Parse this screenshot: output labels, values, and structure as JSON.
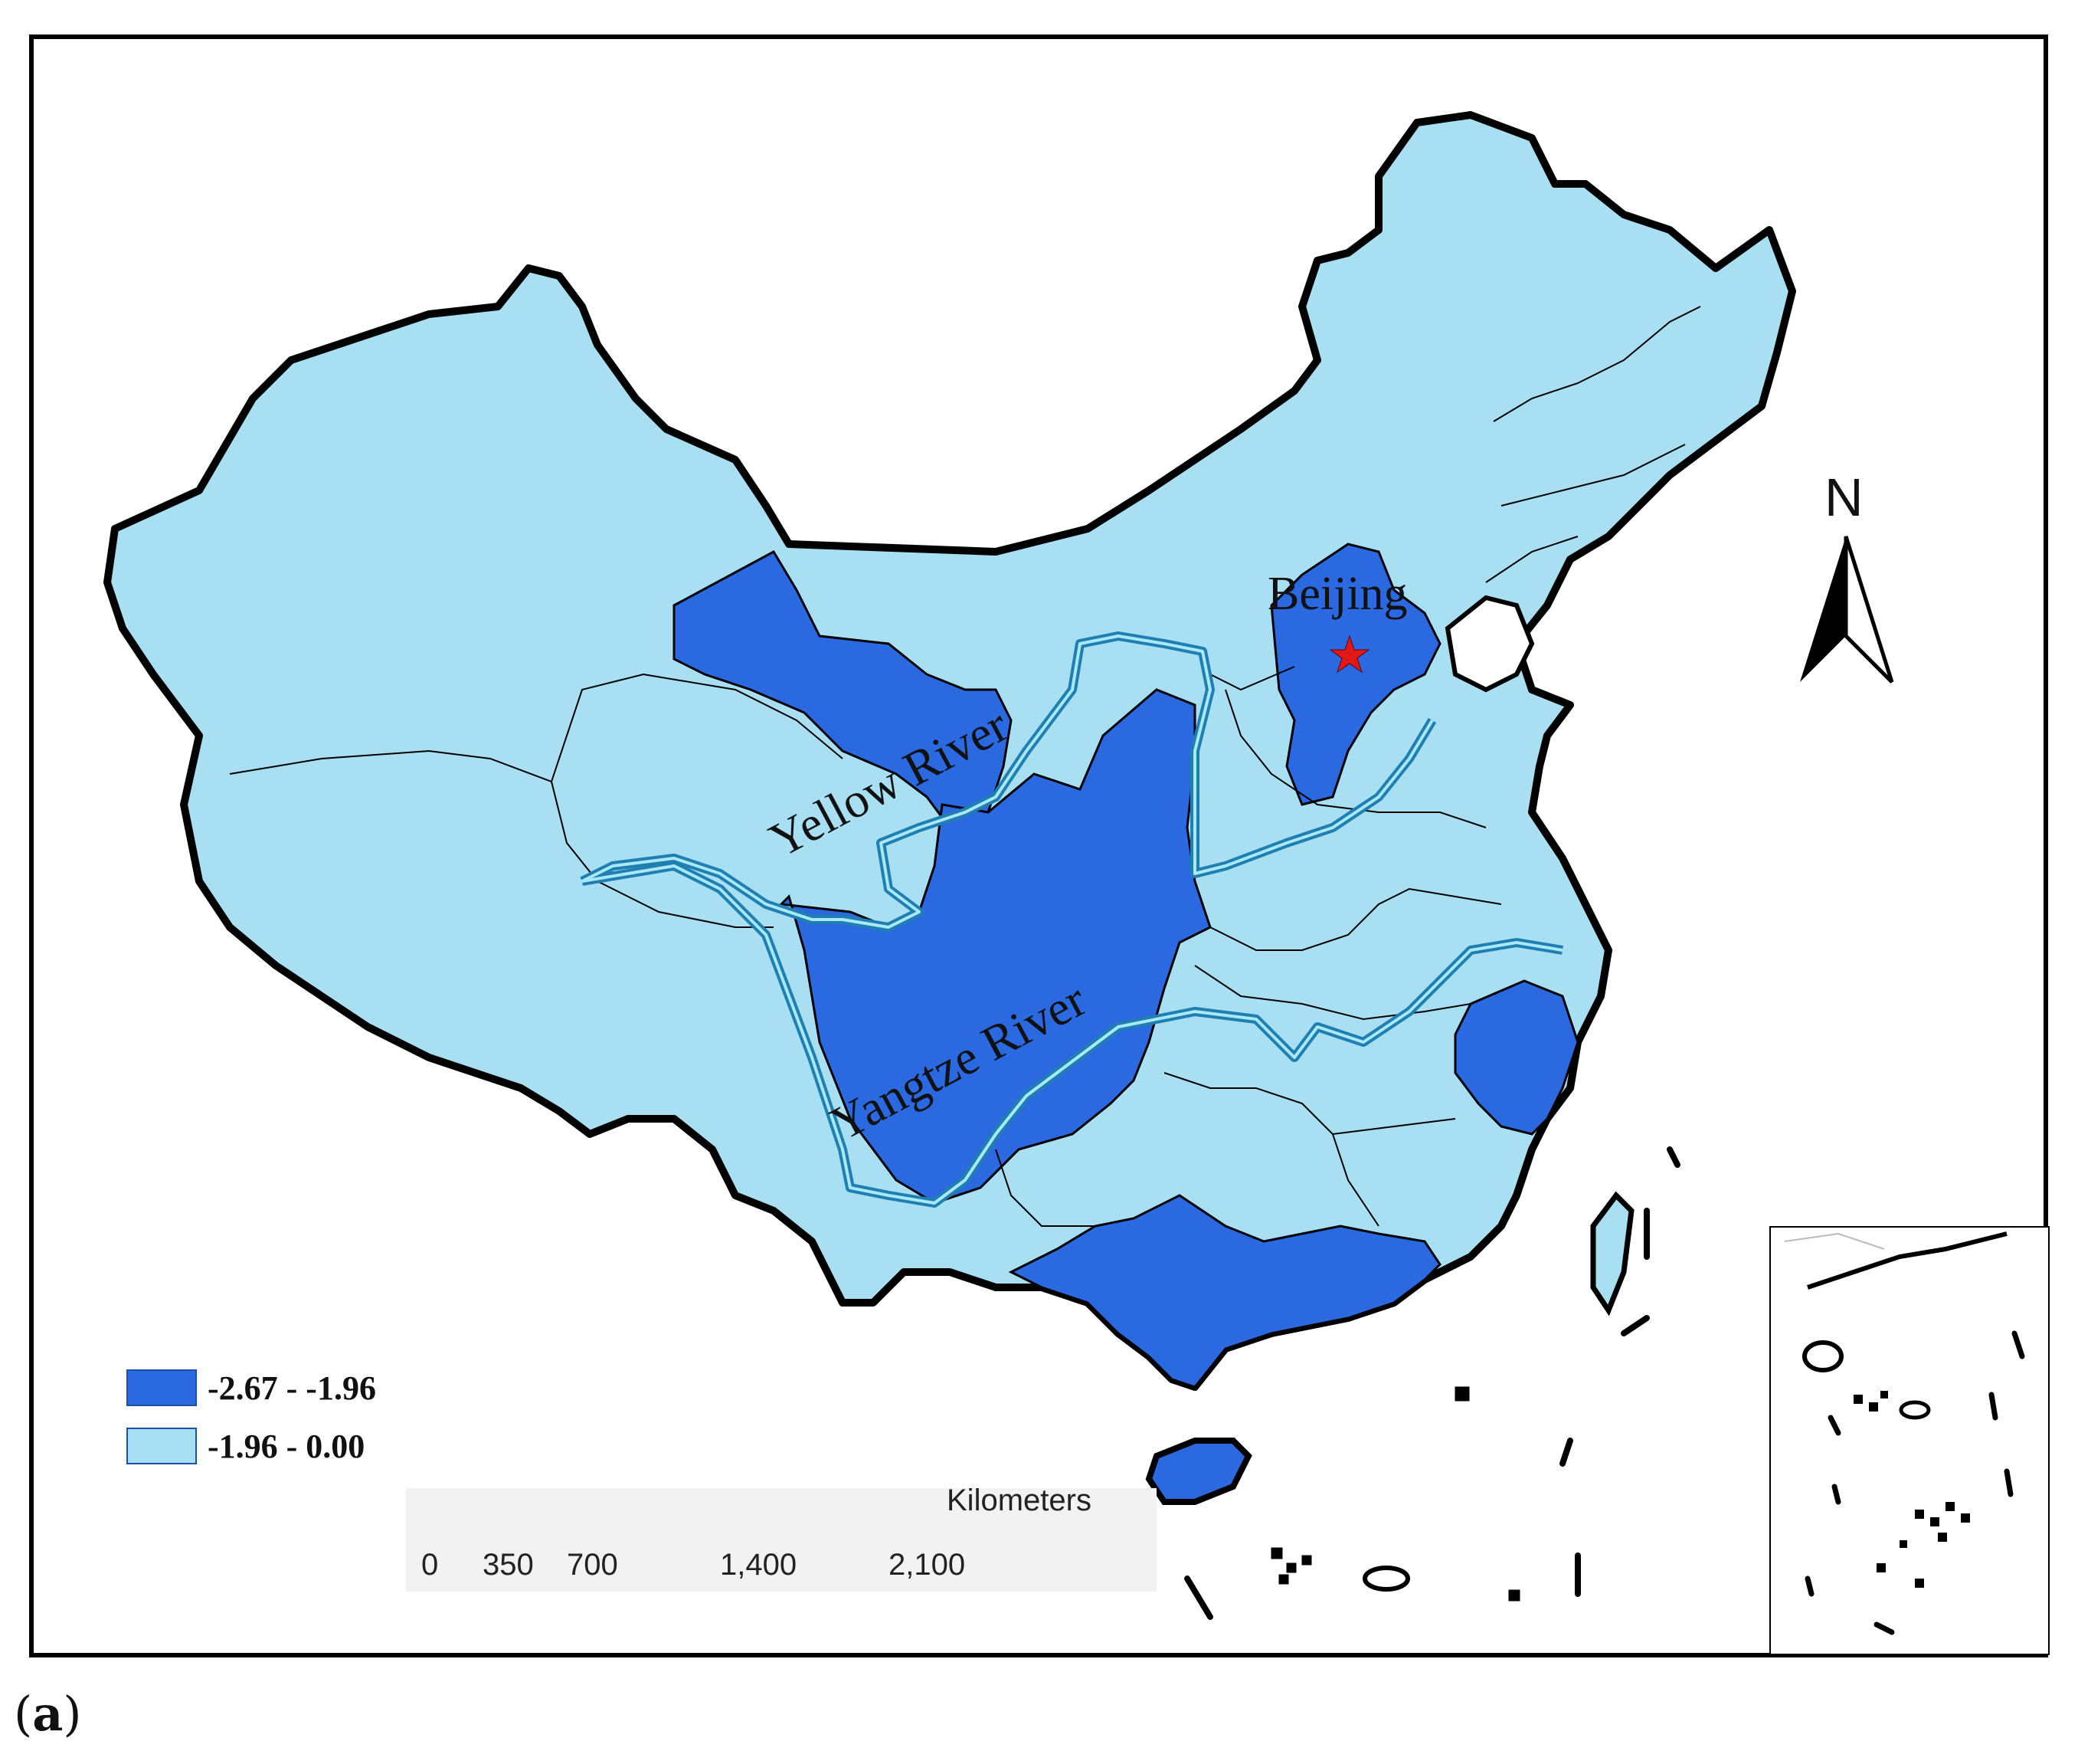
{
  "legend": {
    "items": [
      {
        "label": "-2.67 - -1.96",
        "color": "#2a69e0"
      },
      {
        "label": "-1.96 - 0.00",
        "color": "#a8dff3"
      }
    ]
  },
  "map_labels": {
    "capital": "Beijing",
    "river_yellow": "Yellow River",
    "river_yangtze": "Yangtze River"
  },
  "north_arrow": {
    "label": "N"
  },
  "scale_bar": {
    "unit": "Kilometers",
    "ticks": [
      "0",
      "350",
      "700",
      "1,400",
      "2,100"
    ]
  },
  "panel_label": {
    "open": "(",
    "letter": "a",
    "close": ")"
  },
  "colors": {
    "low_class": "#2a69e0",
    "high_class": "#a8dff3",
    "river": "#2aa0c8",
    "border": "#000000",
    "capital_marker": "#e01818"
  }
}
